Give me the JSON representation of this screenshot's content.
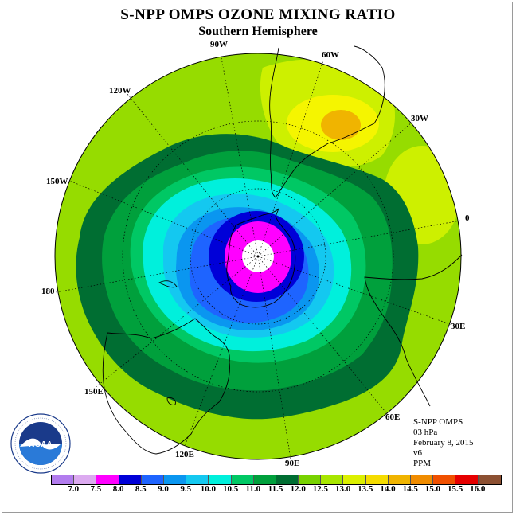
{
  "title": "S-NPP OMPS OZONE MIXING RATIO",
  "subtitle": "Southern Hemisphere",
  "longitude_labels": [
    "90W",
    "60W",
    "30W",
    "0",
    "30E",
    "60E",
    "90E",
    "120E",
    "150E",
    "180",
    "150W",
    "120W"
  ],
  "info": {
    "instrument": "S-NPP OMPS",
    "level": "03 hPa",
    "date": "February 8, 2015",
    "version": "v6",
    "units": "PPM"
  },
  "logo": {
    "text": "NOAA",
    "ring_text": "NATIONAL OCEANIC AND ATMOSPHERIC ADMINISTRATION · U.S. DEPARTMENT OF COMMERCE"
  },
  "colorbar": {
    "labels": [
      "7.0",
      "7.5",
      "8.0",
      "8.5",
      "9.0",
      "9.5",
      "10.0",
      "10.5",
      "11.0",
      "11.5",
      "12.0",
      "12.5",
      "13.0",
      "13.5",
      "14.0",
      "14.5",
      "15.0",
      "15.5",
      "16.0"
    ],
    "colors": [
      "#b27cee",
      "#dcaaf0",
      "#ff00ff",
      "#0000d8",
      "#1e64ff",
      "#0a96f0",
      "#14c8f0",
      "#00f0dc",
      "#00c864",
      "#00a03c",
      "#006e32",
      "#78d200",
      "#a8e600",
      "#dcf000",
      "#f5dc00",
      "#f0b400",
      "#f08c00",
      "#f05000",
      "#e60000",
      "#8c5032"
    ]
  },
  "map_colors": {
    "background": "#96dc00",
    "level_12_0": "#006e32",
    "level_11_5": "#00a03c",
    "level_11_0": "#00c864",
    "level_10_5": "#00f0dc",
    "level_10_0": "#14c8f0",
    "level_9_5": "#0a96f0",
    "level_9_0": "#1e64ff",
    "level_8_5": "#0000d8",
    "level_8_0": "#ff00ff",
    "yellow_green": "#cdf000",
    "yellow": "#f5f500",
    "orange": "#f0b400"
  }
}
